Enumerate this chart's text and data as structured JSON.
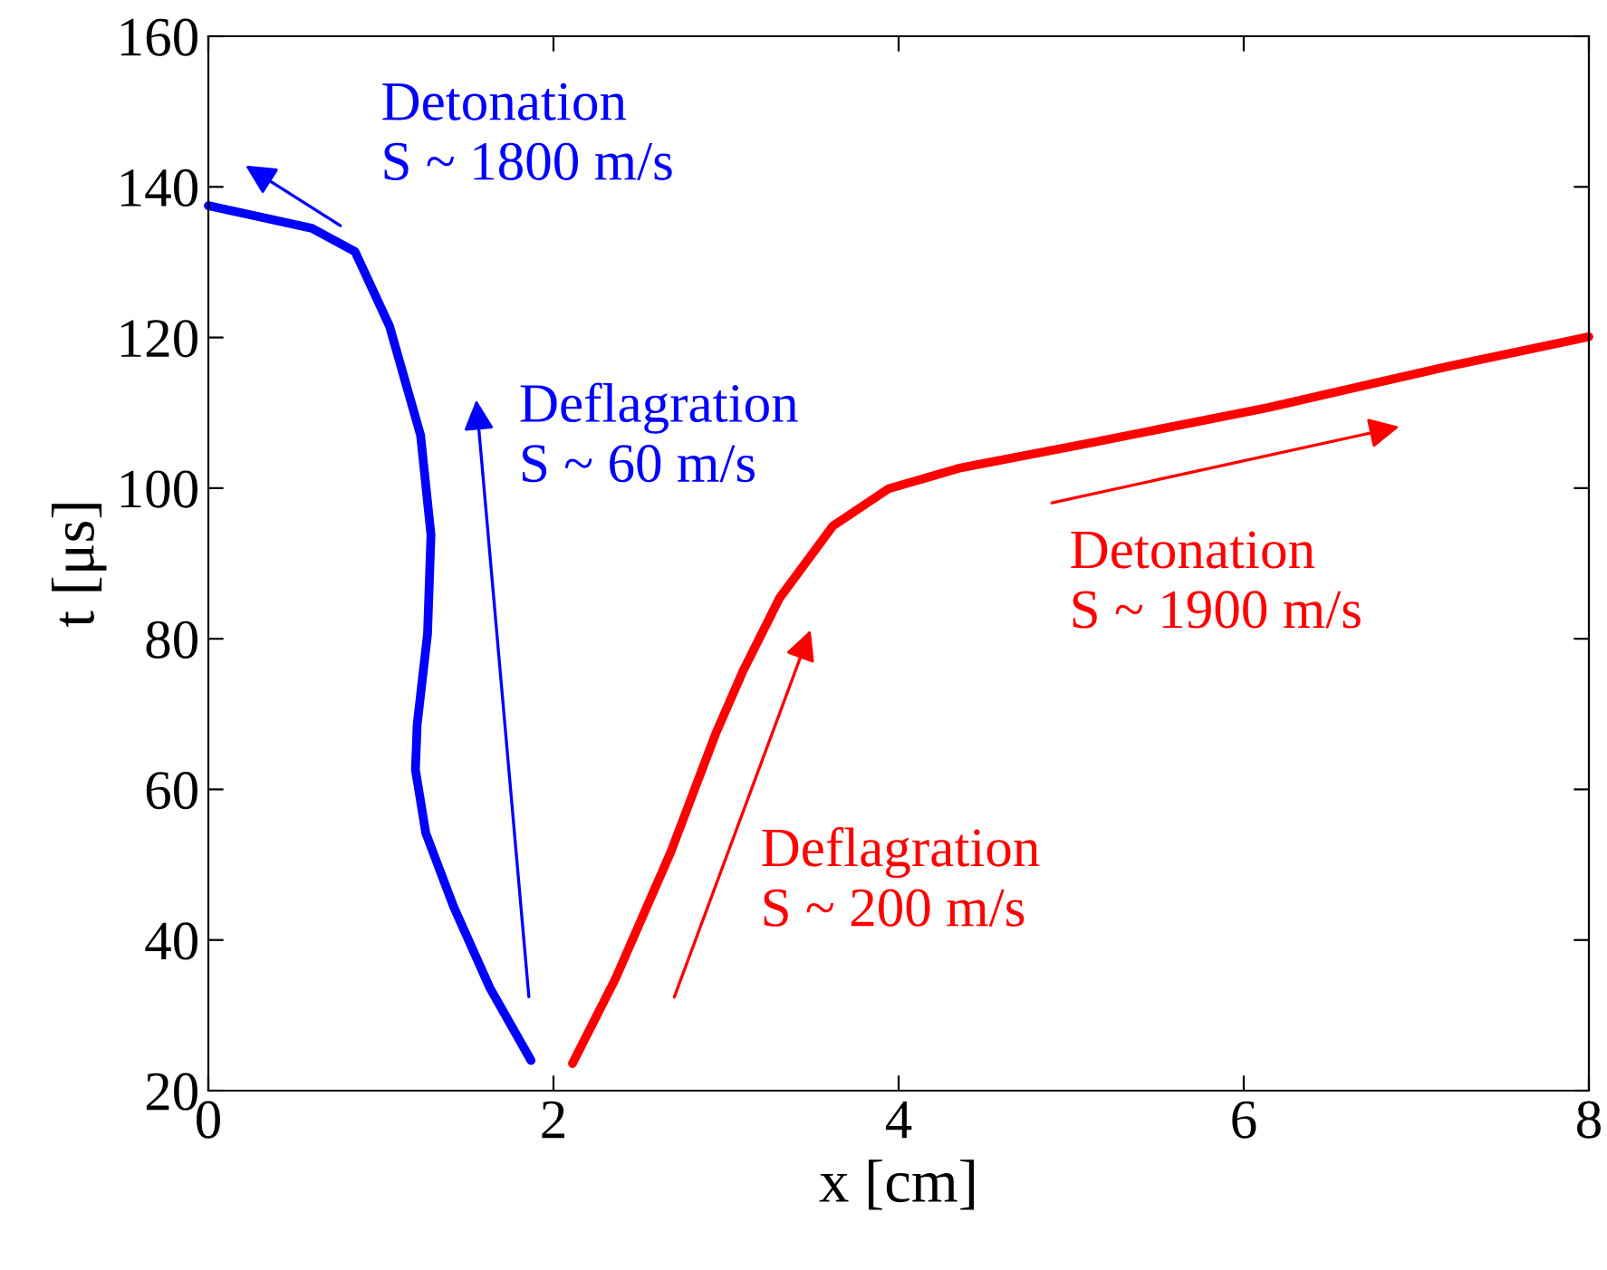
{
  "chart_data": {
    "type": "line",
    "xlabel": "x [cm]",
    "ylabel": "t [μs]",
    "xlim": [
      0,
      8
    ],
    "ylim": [
      20,
      160
    ],
    "xticks": [
      0,
      2,
      4,
      6,
      8
    ],
    "yticks": [
      20,
      40,
      60,
      80,
      100,
      120,
      140,
      160
    ],
    "grid": false,
    "legend": false,
    "marker": "none",
    "line_style": "solid",
    "series": [
      {
        "color": "#0000ff",
        "x": [
          0,
          0.3,
          0.6,
          0.85,
          1.05,
          1.23,
          1.29,
          1.27,
          1.21,
          1.2,
          1.26,
          1.42,
          1.63,
          1.87
        ],
        "values": [
          137.5,
          136,
          134.5,
          131.4,
          121.5,
          107,
          93.8,
          80.6,
          68.6,
          62.6,
          54.2,
          44.5,
          33.7,
          24
        ]
      },
      {
        "color": "#ff0000",
        "x": [
          2.11,
          2.36,
          2.68,
          2.94,
          3.1,
          3.31,
          3.62,
          3.94,
          4.36,
          5.09,
          6.14,
          7.19,
          8
        ],
        "values": [
          23.6,
          34.9,
          51.7,
          67.4,
          75.8,
          85.4,
          95,
          99.9,
          102.7,
          105.9,
          110.7,
          116.2,
          120.1
        ]
      }
    ],
    "annotations": [
      "Detonation\nS ~ 1800 m/s",
      "Deflagration\nS ~ 60 m/s",
      "Detonation\nS ~ 1900 m/s",
      "Deflagration\nS ~ 200 m/s"
    ]
  }
}
